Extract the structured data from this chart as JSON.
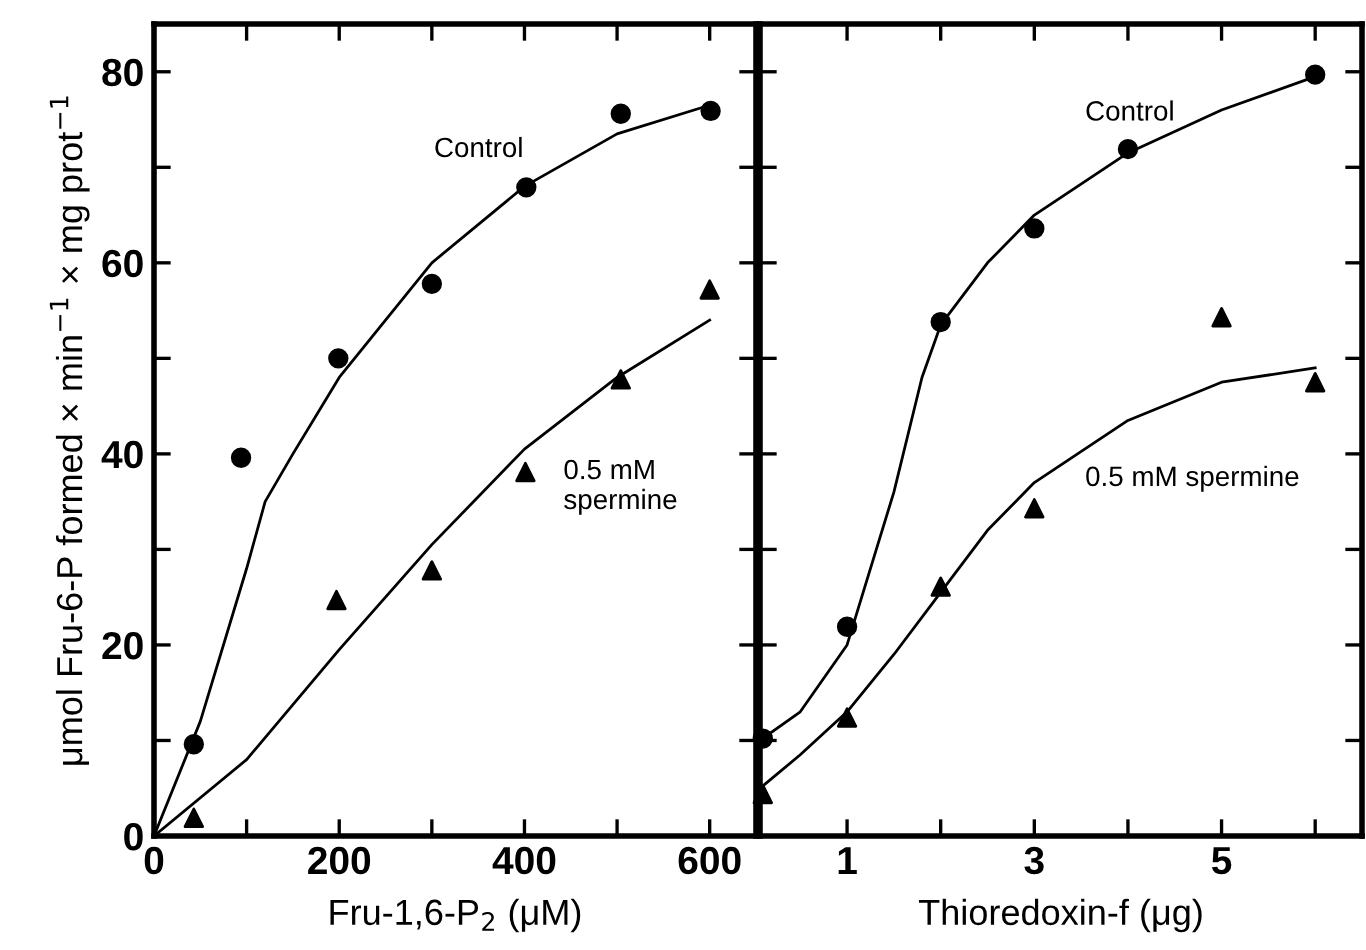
{
  "chart_data": [
    {
      "type": "scatter",
      "xlabel": "Fru-1,6-P$_{2}$ (μM)",
      "ylabel": "μmol Fru-6-P formed × min$^{−1}$ × mg prot$^{−1}$",
      "xlim": [
        0,
        650
      ],
      "xticks": [
        0,
        {
          "value": 100,
          "label": null
        },
        200,
        {
          "value": 300,
          "label": null
        },
        400,
        {
          "value": 500,
          "label": null
        },
        600
      ],
      "ylim": [
        0,
        85
      ],
      "yticks": [
        0,
        {
          "value": 10,
          "label": null
        },
        20,
        {
          "value": 30,
          "label": null
        },
        40,
        {
          "value": 50,
          "label": null
        },
        60,
        {
          "value": 70,
          "label": null
        },
        80
      ],
      "grid": false,
      "legend": false,
      "series": [
        {
          "marker": "circle",
          "color": "#000000",
          "x": [
            43,
            94,
            199,
            300,
            402,
            504,
            601
          ],
          "values": [
            9.6,
            39.6,
            50.0,
            57.8,
            67.9,
            75.6,
            75.9
          ]
        },
        {
          "marker": "triangle",
          "color": "#000000",
          "x": [
            43,
            197,
            300,
            401,
            504,
            600
          ],
          "values": [
            1.9,
            24.7,
            27.8,
            38.1,
            47.8,
            57.2
          ]
        },
        {
          "type": "line",
          "name": "Control",
          "marker": "none",
          "line_style": "solid",
          "color": "#000000",
          "x": [
            0,
            50,
            100,
            120,
            150,
            200,
            300,
            400,
            500,
            600
          ],
          "values": [
            0,
            12,
            28,
            35,
            40,
            48,
            60,
            68,
            73.5,
            76.5
          ]
        },
        {
          "type": "line",
          "name": "0.5 mM\nspermine",
          "marker": "none",
          "line_style": "solid",
          "color": "#000000",
          "x": [
            0,
            100,
            200,
            300,
            400,
            500,
            600
          ],
          "values": [
            0,
            8,
            19.5,
            30.5,
            40.5,
            48,
            54
          ]
        }
      ]
    },
    {
      "type": "scatter",
      "xlabel": "Thioredoxin-f (μg)",
      "tick_labels": "x",
      "xlim": [
        0.07,
        6.5
      ],
      "xticks": [
        1,
        {
          "value": 2,
          "label": null
        },
        3,
        {
          "value": 4,
          "label": null
        },
        5,
        {
          "value": 6,
          "label": null
        }
      ],
      "ylim": [
        0,
        85
      ],
      "yticks": [
        0,
        10,
        20,
        30,
        40,
        50,
        60,
        70,
        80
      ],
      "grid": false,
      "legend": false,
      "series": [
        {
          "marker": "circle",
          "color": "#000000",
          "x": [
            0.1,
            1,
            2,
            3,
            4,
            6
          ],
          "values": [
            10.2,
            21.9,
            53.8,
            63.6,
            71.9,
            79.7
          ]
        },
        {
          "marker": "triangle",
          "color": "#000000",
          "x": [
            0.1,
            1,
            2,
            3,
            5,
            6
          ],
          "values": [
            4.4,
            12.4,
            26.1,
            34.3,
            54.3,
            47.5
          ]
        },
        {
          "type": "line",
          "name": "Control",
          "marker": "none",
          "line_style": "solid",
          "color": "#000000",
          "x": [
            0.07,
            0.5,
            1,
            1.5,
            1.8,
            2,
            2.5,
            3,
            4,
            5,
            6
          ],
          "values": [
            10,
            13,
            20,
            36,
            48,
            53.5,
            60,
            65,
            71.5,
            76,
            79.5
          ]
        },
        {
          "type": "line",
          "name": "0.5 mM spermine",
          "marker": "none",
          "line_style": "solid",
          "color": "#000000",
          "x": [
            0.07,
            0.5,
            1,
            1.5,
            2,
            2.5,
            3,
            4,
            5,
            6
          ],
          "values": [
            5,
            8.5,
            13,
            19,
            25.5,
            32,
            37,
            43.5,
            47.5,
            49
          ]
        }
      ]
    }
  ]
}
